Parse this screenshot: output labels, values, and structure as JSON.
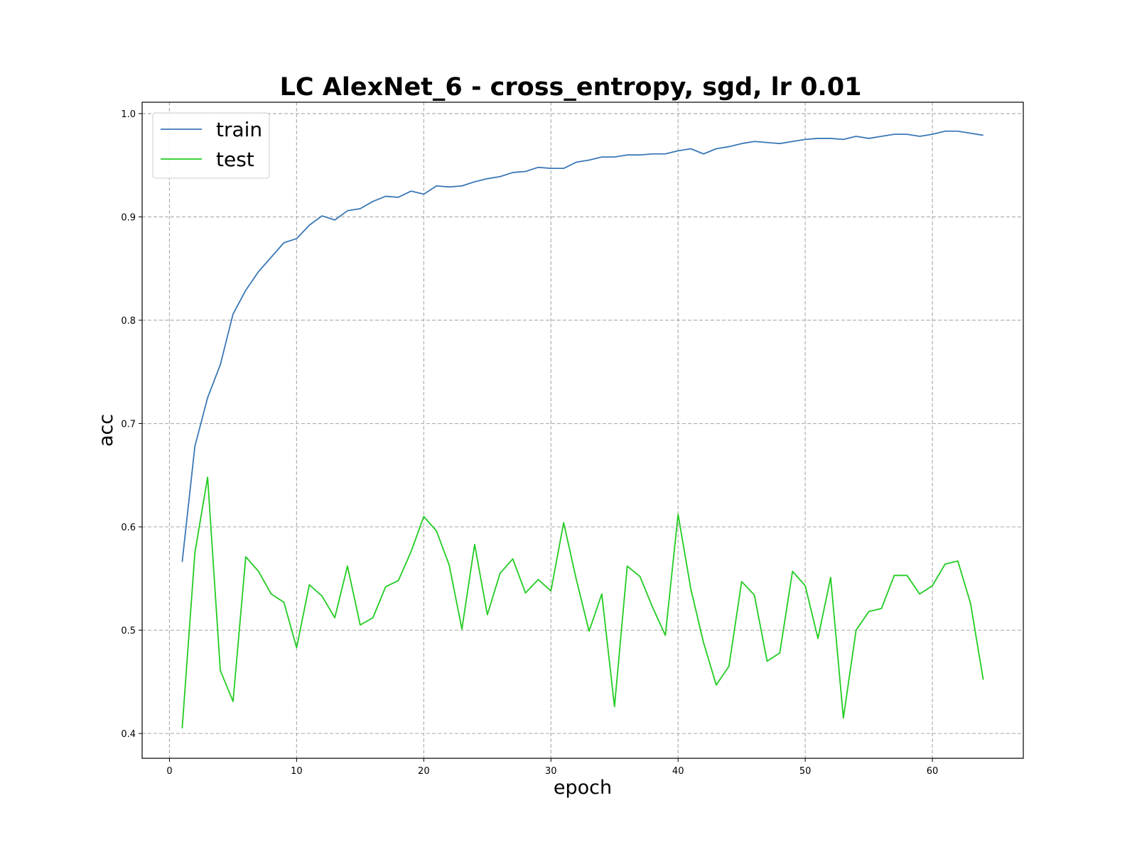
{
  "chart_data": {
    "type": "line",
    "title": "LC AlexNet_6 - cross_entropy, sgd, lr 0.01",
    "xlabel": "epoch",
    "ylabel": "acc",
    "xlim": [
      -2.15,
      67.15
    ],
    "ylim": [
      0.376,
      1.011
    ],
    "xticks": [
      0,
      10,
      20,
      30,
      40,
      50,
      60
    ],
    "xtick_labels": [
      "0",
      "10",
      "20",
      "30",
      "40",
      "50",
      "60"
    ],
    "yticks": [
      0.4,
      0.5,
      0.6,
      0.7,
      0.8,
      0.9,
      1.0
    ],
    "ytick_labels": [
      "0.4",
      "0.5",
      "0.6",
      "0.7",
      "0.8",
      "0.9",
      "1.0"
    ],
    "grid": true,
    "legend_position": "top-left",
    "x": [
      1,
      2,
      3,
      4,
      5,
      6,
      7,
      8,
      9,
      10,
      11,
      12,
      13,
      14,
      15,
      16,
      17,
      18,
      19,
      20,
      21,
      22,
      23,
      24,
      25,
      26,
      27,
      28,
      29,
      30,
      31,
      32,
      33,
      34,
      35,
      36,
      37,
      38,
      39,
      40,
      41,
      42,
      43,
      44,
      45,
      46,
      47,
      48,
      49,
      50,
      51,
      52,
      53,
      54,
      55,
      56,
      57,
      58,
      59,
      60,
      61,
      62,
      63,
      64
    ],
    "series": [
      {
        "name": "train",
        "color": "#3a78b6",
        "values": [
          0.566,
          0.678,
          0.725,
          0.757,
          0.806,
          0.829,
          0.847,
          0.861,
          0.875,
          0.879,
          0.892,
          0.901,
          0.897,
          0.906,
          0.908,
          0.915,
          0.92,
          0.919,
          0.925,
          0.922,
          0.93,
          0.929,
          0.93,
          0.934,
          0.937,
          0.939,
          0.943,
          0.944,
          0.948,
          0.947,
          0.947,
          0.953,
          0.955,
          0.958,
          0.958,
          0.96,
          0.96,
          0.961,
          0.961,
          0.964,
          0.966,
          0.961,
          0.966,
          0.968,
          0.971,
          0.973,
          0.972,
          0.971,
          0.973,
          0.975,
          0.976,
          0.976,
          0.975,
          0.978,
          0.976,
          0.978,
          0.98,
          0.98,
          0.978,
          0.98,
          0.983,
          0.983,
          0.981,
          0.979
        ]
      },
      {
        "name": "test",
        "color": "#22cc22",
        "values": [
          0.405,
          0.575,
          0.648,
          0.461,
          0.431,
          0.571,
          0.557,
          0.535,
          0.527,
          0.483,
          0.544,
          0.533,
          0.512,
          0.562,
          0.505,
          0.512,
          0.542,
          0.548,
          0.576,
          0.61,
          0.596,
          0.563,
          0.501,
          0.583,
          0.515,
          0.555,
          0.569,
          0.536,
          0.549,
          0.538,
          0.604,
          0.549,
          0.499,
          0.535,
          0.426,
          0.562,
          0.552,
          0.522,
          0.495,
          0.612,
          0.54,
          0.488,
          0.447,
          0.465,
          0.547,
          0.534,
          0.47,
          0.478,
          0.557,
          0.543,
          0.492,
          0.551,
          0.415,
          0.5,
          0.518,
          0.521,
          0.553,
          0.553,
          0.535,
          0.543,
          0.564,
          0.567,
          0.526,
          0.452
        ]
      }
    ]
  }
}
